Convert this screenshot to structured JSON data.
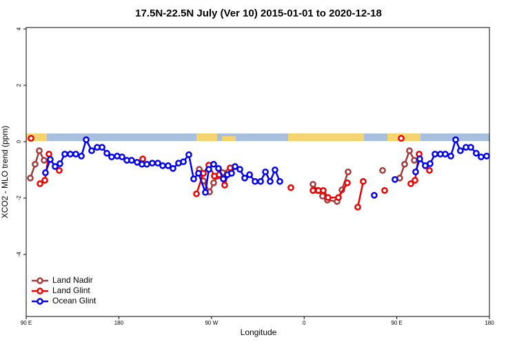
{
  "chart_data": {
    "type": "line",
    "title": "17.5N-22.5N July (Ver 10)   2015-01-01 to 2020-12-18",
    "xlabel": "Longitude",
    "ylabel": "XCO2 - MLO trend (ppm)",
    "xlim": [
      90,
      540
    ],
    "ylim": [
      -6.2,
      4.05
    ],
    "xticks": [
      {
        "value": 90,
        "label": "90 E"
      },
      {
        "value": 180,
        "label": "180"
      },
      {
        "value": 270,
        "label": "90 W"
      },
      {
        "value": 360,
        "label": "0"
      },
      {
        "value": 450,
        "label": "90 E"
      },
      {
        "value": 540,
        "label": "180"
      }
    ],
    "yticks": [
      4,
      2,
      0,
      -2,
      -4
    ],
    "legend": "lower left",
    "series": [
      {
        "name": "Land Nadir",
        "color": "#a33a3a",
        "x": [
          94,
          98.7,
          102.7,
          107.4,
          null,
          258.1,
          262.1,
          268.1,
          272.1,
          276.1,
          280.8,
          288.2,
          null,
          368.6,
          373.2,
          377.9,
          382.6,
          392,
          396.7,
          402.7,
          null,
          436.2,
          null,
          452.9,
          457.6,
          462.3,
          467
        ],
        "values": [
          -1.29,
          -0.8,
          -0.32,
          -0.66,
          null,
          -0.98,
          -1.39,
          -1.78,
          -1.46,
          -1.22,
          -1.1,
          -0.93,
          null,
          -1.51,
          -1.73,
          -1.93,
          -2.07,
          -2.12,
          -1.71,
          -1.07,
          null,
          -1.02,
          null,
          -1.29,
          -0.8,
          -0.32,
          -0.66
        ]
      },
      {
        "name": "Land Glint",
        "color": "#ee0000",
        "x": [
          94.7,
          null,
          103.4,
          108.1,
          112.1,
          null,
          122.1,
          null,
          203.2,
          null,
          255.4,
          262.1,
          267.4,
          272.8,
          277.5,
          282.8,
          288.2,
          null,
          347.1,
          null,
          368.6,
          373.9,
          378.6,
          383.3,
          393.3,
          402,
          null,
          412.1,
          417.4,
          null,
          438.2,
          null,
          454.3,
          null,
          463.6,
          467.7,
          471.7,
          null,
          481.7
        ],
        "values": [
          0.12,
          null,
          -1.49,
          -1.37,
          -0.44,
          null,
          -1.02,
          null,
          -0.61,
          null,
          -1.85,
          -1.12,
          -0.83,
          -1.22,
          -1.17,
          -1.54,
          -0.93,
          null,
          -1.63,
          null,
          -1.73,
          -1.73,
          -1.73,
          -1.98,
          -1.98,
          -1.46,
          null,
          -2.32,
          -1.41,
          null,
          -1.73,
          null,
          0.12,
          null,
          -1.49,
          -1.37,
          -0.44,
          null,
          -1.02
        ]
      },
      {
        "name": "Ocean Glint",
        "color": "#0000ee",
        "x": [
          108.7,
          113.4,
          118.1,
          122.8,
          127.5,
          132.9,
          138.2,
          143.6,
          148.3,
          153.6,
          159,
          163.7,
          168.4,
          173,
          178.4,
          183.1,
          187.8,
          192.4,
          197.8,
          202.5,
          207.2,
          212.5,
          217.9,
          222.6,
          227.9,
          232.6,
          238,
          242.7,
          248,
          252.7,
          257.4,
          264.1,
          267.4,
          272.1,
          276.8,
          281.5,
          285.5,
          289.5,
          292.9,
          297.6,
          302.3,
          307,
          312.3,
          317.7,
          322.4,
          327,
          331.7,
          336.4,
          null,
          428.1,
          null,
          448.2,
          null,
          468.3,
          472.3,
          477.7,
          482.4,
          487.1,
          492.4,
          497.1,
          502.5,
          507.2,
          511.8,
          517.2,
          521.9,
          527.2,
          531.9,
          537.3
        ],
        "values": [
          -1.1,
          -0.63,
          -0.88,
          -0.78,
          -0.44,
          -0.44,
          -0.44,
          -0.51,
          0.07,
          -0.32,
          -0.2,
          -0.2,
          -0.41,
          -0.54,
          -0.51,
          -0.54,
          -0.66,
          -0.66,
          -0.73,
          -0.8,
          -0.8,
          -0.76,
          -0.76,
          -0.85,
          -0.85,
          -0.95,
          -0.76,
          -0.71,
          -0.46,
          -1.32,
          -1.12,
          -1.8,
          -0.98,
          -0.8,
          -0.95,
          -1.32,
          -1.17,
          -1.12,
          -0.88,
          -0.98,
          -1.29,
          -1.17,
          -1.41,
          -1.41,
          -1.07,
          -1.41,
          -1.0,
          -1.41,
          null,
          -1.9,
          null,
          -1.34,
          null,
          -1.07,
          -0.61,
          -0.85,
          -0.78,
          -0.44,
          -0.44,
          -0.44,
          -0.51,
          0.07,
          -0.32,
          -0.2,
          -0.2,
          -0.41,
          -0.54,
          -0.51
        ]
      }
    ]
  }
}
